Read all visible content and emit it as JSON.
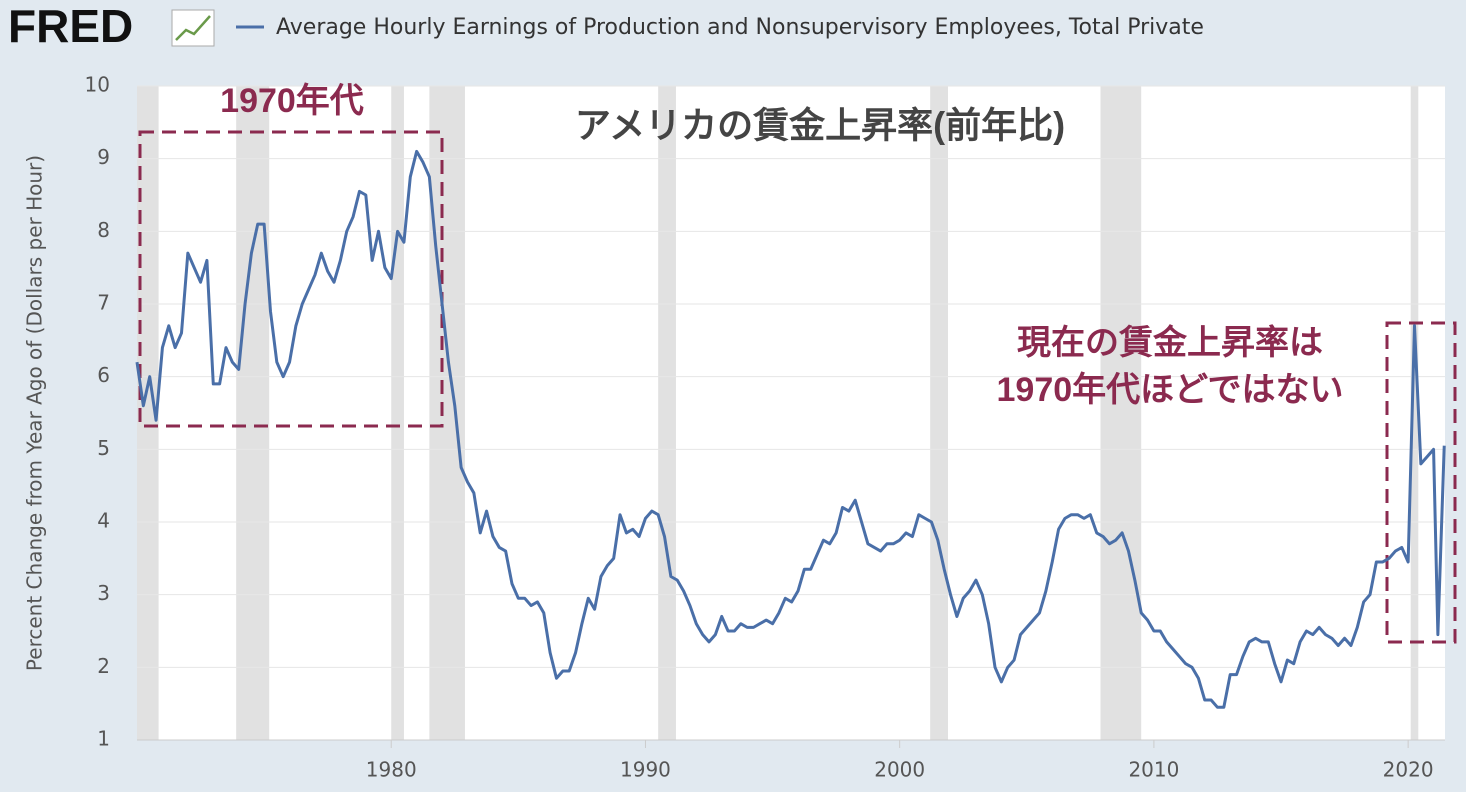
{
  "chart_data": {
    "type": "line",
    "logo": "FRED",
    "title": "アメリカの賃金上昇率(前年比)",
    "y_label": "Percent Change from Year Ago of (Dollars per Hour)",
    "annotations": [
      "1970年代",
      "現在の賃金上昇率は",
      "1970年代ほどではない"
    ],
    "x": [
      1970,
      1970.25,
      1970.5,
      1970.75,
      1971,
      1971.25,
      1971.5,
      1971.75,
      1972,
      1972.25,
      1972.5,
      1972.75,
      1973,
      1973.25,
      1973.5,
      1973.75,
      1974,
      1974.25,
      1974.5,
      1974.75,
      1975,
      1975.25,
      1975.5,
      1975.75,
      1976,
      1976.25,
      1976.5,
      1976.75,
      1977,
      1977.25,
      1977.5,
      1977.75,
      1978,
      1978.25,
      1978.5,
      1978.75,
      1979,
      1979.25,
      1979.5,
      1979.75,
      1980,
      1980.25,
      1980.5,
      1980.75,
      1981,
      1981.25,
      1981.5,
      1981.75,
      1982,
      1982.25,
      1982.5,
      1982.75,
      1983,
      1983.25,
      1983.5,
      1983.75,
      1984,
      1984.25,
      1984.5,
      1984.75,
      1985,
      1985.25,
      1985.5,
      1985.75,
      1986,
      1986.25,
      1986.5,
      1986.75,
      1987,
      1987.25,
      1987.5,
      1987.75,
      1988,
      1988.25,
      1988.5,
      1988.75,
      1989,
      1989.25,
      1989.5,
      1989.75,
      1990,
      1990.25,
      1990.5,
      1990.75,
      1991,
      1991.25,
      1991.5,
      1991.75,
      1992,
      1992.25,
      1992.5,
      1992.75,
      1993,
      1993.25,
      1993.5,
      1993.75,
      1994,
      1994.25,
      1994.5,
      1994.75,
      1995,
      1995.25,
      1995.5,
      1995.75,
      1996,
      1996.25,
      1996.5,
      1996.75,
      1997,
      1997.25,
      1997.5,
      1997.75,
      1998,
      1998.25,
      1998.5,
      1998.75,
      1999,
      1999.25,
      1999.5,
      1999.75,
      2000,
      2000.25,
      2000.5,
      2000.75,
      2001,
      2001.25,
      2001.5,
      2001.75,
      2002,
      2002.25,
      2002.5,
      2002.75,
      2003,
      2003.25,
      2003.5,
      2003.75,
      2004,
      2004.25,
      2004.5,
      2004.75,
      2005,
      2005.25,
      2005.5,
      2005.75,
      2006,
      2006.25,
      2006.5,
      2006.75,
      2007,
      2007.25,
      2007.5,
      2007.75,
      2008,
      2008.25,
      2008.5,
      2008.75,
      2009,
      2009.25,
      2009.5,
      2009.75,
      2010,
      2010.25,
      2010.5,
      2010.75,
      2011,
      2011.25,
      2011.5,
      2011.75,
      2012,
      2012.25,
      2012.5,
      2012.75,
      2013,
      2013.25,
      2013.5,
      2013.75,
      2014,
      2014.25,
      2014.5,
      2014.75,
      2015,
      2015.25,
      2015.5,
      2015.75,
      2016,
      2016.25,
      2016.5,
      2016.75,
      2017,
      2017.25,
      2017.5,
      2017.75,
      2018,
      2018.25,
      2018.5,
      2018.75,
      2019,
      2019.25,
      2019.5,
      2019.75,
      2020,
      2020.25,
      2020.5,
      2020.75,
      2021,
      2021.17,
      2021.42
    ],
    "series": [
      {
        "name": "Average Hourly Earnings of Production and Nonsupervisory Employees, Total Private",
        "color": "#4a6fa8",
        "values": [
          6.2,
          5.6,
          6.0,
          5.4,
          6.4,
          6.7,
          6.4,
          6.6,
          7.7,
          7.5,
          7.3,
          7.6,
          5.9,
          5.9,
          6.4,
          6.2,
          6.1,
          7.0,
          7.7,
          8.1,
          8.1,
          6.9,
          6.2,
          6.0,
          6.2,
          6.7,
          7.0,
          7.2,
          7.4,
          7.7,
          7.45,
          7.3,
          7.6,
          8.0,
          8.2,
          8.55,
          8.5,
          7.6,
          8.0,
          7.5,
          7.35,
          8.0,
          7.85,
          8.75,
          9.1,
          8.95,
          8.75,
          7.8,
          7.0,
          6.2,
          5.6,
          4.75,
          4.55,
          4.4,
          3.85,
          4.15,
          3.8,
          3.65,
          3.6,
          3.15,
          2.95,
          2.95,
          2.85,
          2.9,
          2.75,
          2.2,
          1.85,
          1.95,
          1.95,
          2.2,
          2.6,
          2.95,
          2.8,
          3.25,
          3.4,
          3.5,
          4.1,
          3.85,
          3.9,
          3.8,
          4.05,
          4.15,
          4.1,
          3.8,
          3.25,
          3.2,
          3.05,
          2.85,
          2.6,
          2.45,
          2.35,
          2.45,
          2.7,
          2.5,
          2.5,
          2.6,
          2.55,
          2.55,
          2.6,
          2.65,
          2.6,
          2.75,
          2.95,
          2.9,
          3.05,
          3.35,
          3.35,
          3.55,
          3.75,
          3.7,
          3.85,
          4.2,
          4.15,
          4.3,
          4.0,
          3.7,
          3.65,
          3.6,
          3.7,
          3.7,
          3.75,
          3.85,
          3.8,
          4.1,
          4.05,
          4.0,
          3.75,
          3.35,
          3.0,
          2.7,
          2.95,
          3.05,
          3.2,
          3.0,
          2.6,
          2.0,
          1.8,
          2.0,
          2.1,
          2.45,
          2.55,
          2.65,
          2.75,
          3.05,
          3.45,
          3.9,
          4.05,
          4.1,
          4.1,
          4.05,
          4.1,
          3.85,
          3.8,
          3.7,
          3.75,
          3.85,
          3.6,
          3.2,
          2.75,
          2.65,
          2.5,
          2.5,
          2.35,
          2.25,
          2.15,
          2.05,
          2.0,
          1.85,
          1.55,
          1.55,
          1.45,
          1.45,
          1.9,
          1.9,
          2.15,
          2.35,
          2.4,
          2.35,
          2.35,
          2.05,
          1.8,
          2.1,
          2.05,
          2.35,
          2.5,
          2.45,
          2.55,
          2.45,
          2.4,
          2.3,
          2.4,
          2.3,
          2.55,
          2.9,
          3.0,
          3.45,
          3.45,
          3.5,
          3.6,
          3.65,
          3.45,
          6.7,
          4.8,
          4.9,
          5.0,
          2.45,
          5.05
        ]
      }
    ],
    "recessions": [
      [
        1970,
        1970.85
      ],
      [
        1973.9,
        1975.2
      ],
      [
        1980,
        1980.5
      ],
      [
        1981.5,
        1982.9
      ],
      [
        1990.5,
        1991.2
      ],
      [
        2001.2,
        2001.9
      ],
      [
        2007.9,
        2009.5
      ],
      [
        2020.1,
        2020.4
      ]
    ],
    "recession_color": "#e1e1e1",
    "xlim": [
      1970,
      2021.45
    ],
    "xticks": [
      1980,
      1990,
      2000,
      2010,
      2020
    ],
    "ylim": [
      1,
      10
    ],
    "yticks": [
      1,
      2,
      3,
      4,
      5,
      6,
      7,
      8,
      9,
      10
    ],
    "grid": true
  }
}
